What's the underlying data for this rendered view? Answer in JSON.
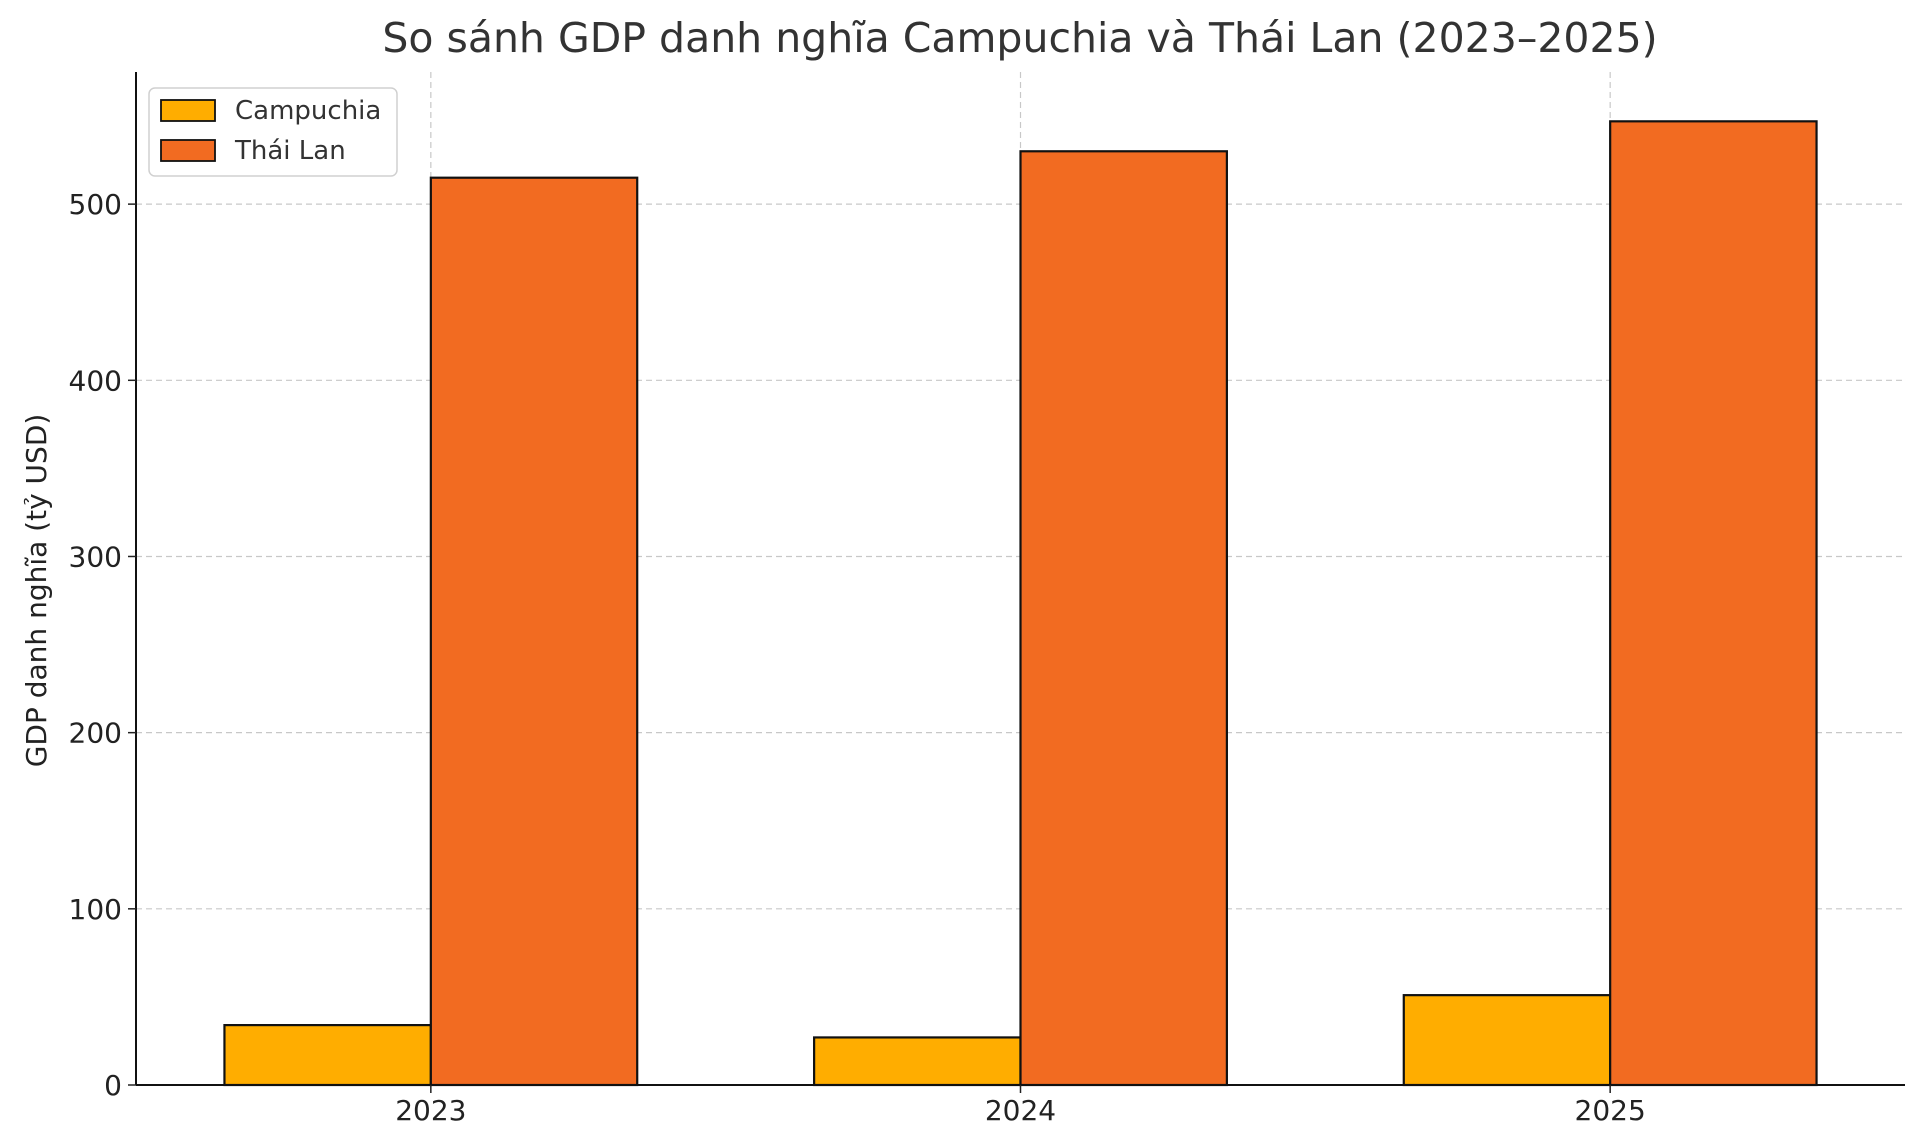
{
  "chart_data": {
    "type": "bar",
    "title": "So sánh GDP danh nghĩa Campuchia và Thái Lan (2023–2025)",
    "xlabel": "",
    "ylabel": "GDP danh nghĩa (tỷ USD)",
    "categories": [
      "2023",
      "2024",
      "2025"
    ],
    "series": [
      {
        "name": "Campuchia",
        "values": [
          34,
          27,
          51
        ],
        "color": "#FFAD00"
      },
      {
        "name": "Thái Lan",
        "values": [
          515,
          530,
          547
        ],
        "color": "#F26B21"
      }
    ],
    "ylim": [
      0,
      575
    ],
    "yticks": [
      0,
      100,
      200,
      300,
      400,
      500
    ],
    "grid": true,
    "legend_position": "top-left"
  }
}
